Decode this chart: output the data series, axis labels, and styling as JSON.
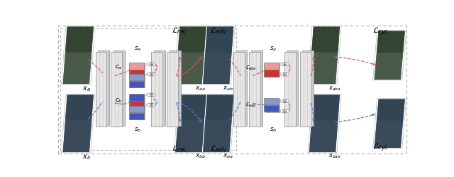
{
  "fig_width": 6.4,
  "fig_height": 2.49,
  "dpi": 100,
  "bg_color": "#ffffff",
  "red": "#e05565",
  "blue": "#5577dd",
  "pink": "#f0aaaa",
  "light_blue_c": "#8899dd",
  "dark_red_block": "#cc3344",
  "dark_blue_block": "#3355bb",
  "mid_pink": "#ee8899",
  "mid_blue": "#6677cc"
}
